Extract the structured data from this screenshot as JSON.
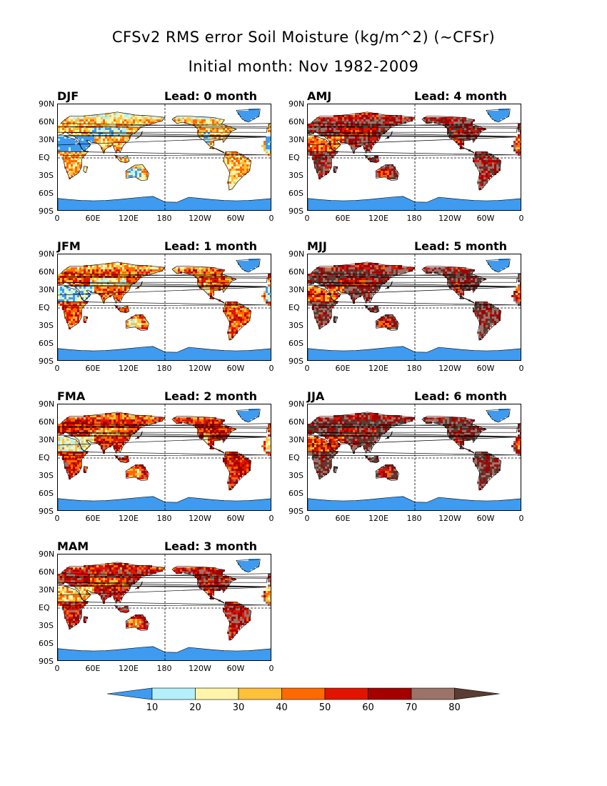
{
  "title_line1": "CFSv2 RMS error Soil Moisture (kg/m^2) (~CFSr)",
  "title_line2": "Initial month: Nov 1982-2009",
  "lat_labels": [
    "90N",
    "60N",
    "30N",
    "EQ",
    "30S",
    "60S",
    "90S"
  ],
  "lon_labels": [
    "0",
    "60E",
    "120E",
    "180",
    "120W",
    "60W",
    "0"
  ],
  "panels": [
    {
      "season": "DJF",
      "lead": "Lead: 0 month",
      "intensity": 0.25
    },
    {
      "season": "AMJ",
      "lead": "Lead: 4 month",
      "intensity": 0.85
    },
    {
      "season": "JFM",
      "lead": "Lead: 1 month",
      "intensity": 0.45
    },
    {
      "season": "MJJ",
      "lead": "Lead: 5 month",
      "intensity": 0.9
    },
    {
      "season": "FMA",
      "lead": "Lead: 2 month",
      "intensity": 0.6
    },
    {
      "season": "JJA",
      "lead": "Lead: 6 month",
      "intensity": 0.95
    },
    {
      "season": "MAM",
      "lead": "Lead: 3 month",
      "intensity": 0.72
    }
  ],
  "chart_data": {
    "type": "heatmap",
    "variable": "RMS error Soil Moisture (kg/m^2)",
    "lat_range": [
      -90,
      90
    ],
    "lon_range": [
      0,
      360
    ],
    "colorbar": {
      "levels": [
        "10",
        "20",
        "30",
        "40",
        "50",
        "60",
        "70",
        "80"
      ],
      "colors": [
        "#3e9bf0",
        "#b4f0fa",
        "#fff5aa",
        "#ffc03c",
        "#ff6a00",
        "#e11400",
        "#a50000",
        "#9b7369",
        "#5a3c32"
      ]
    }
  }
}
